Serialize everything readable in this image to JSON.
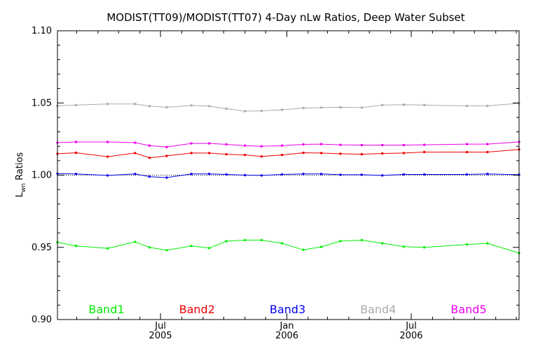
{
  "chart_data": {
    "type": "line",
    "title": "MODIST(TT09)/MODIST(TT07) 4-Day nLw Ratios, Deep Water Subset",
    "ylabel": {
      "main": "L",
      "subscript": "wn",
      "suffix": " Ratios"
    },
    "xlabel": "",
    "ylim": [
      0.9,
      1.1
    ],
    "xlim": [
      "2005-02-01",
      "2006-12-05"
    ],
    "y_ticks": [
      "0.90",
      "0.95",
      "1.00",
      "1.05",
      "1.10"
    ],
    "y_tick_values": [
      0.9,
      0.95,
      1.0,
      1.05,
      1.1
    ],
    "x_ticks": [
      {
        "date": "2005-07-01",
        "month": "Jul",
        "year": "2005"
      },
      {
        "date": "2006-01-01",
        "month": "Jan",
        "year": "2006"
      },
      {
        "date": "2006-07-01",
        "month": "Jul",
        "year": "2006"
      }
    ],
    "x_minor_tick_dates": [
      "2005-03-01",
      "2005-04-01",
      "2005-05-01",
      "2005-06-01",
      "2005-08-01",
      "2005-09-01",
      "2005-10-01",
      "2005-11-01",
      "2005-12-01",
      "2006-02-01",
      "2006-03-01",
      "2006-04-01",
      "2006-05-01",
      "2006-06-01",
      "2006-08-01",
      "2006-09-01",
      "2006-10-01",
      "2006-11-01",
      "2006-12-01"
    ],
    "reference_line": {
      "y": 1.0,
      "style": "dotted"
    },
    "legend_position": "bottom, inside plot",
    "grid": false,
    "series": [
      {
        "name": "Band1",
        "color": "#00ee00",
        "x": [
          "2005-02-01",
          "2005-02-28",
          "2005-04-15",
          "2005-05-25",
          "2005-06-15",
          "2005-07-10",
          "2005-08-15",
          "2005-09-10",
          "2005-10-05",
          "2005-11-01",
          "2005-11-25",
          "2005-12-25",
          "2006-01-25",
          "2006-02-20",
          "2006-03-20",
          "2006-04-20",
          "2006-05-20",
          "2006-06-20",
          "2006-07-20",
          "2006-09-20",
          "2006-10-20",
          "2006-12-05"
        ],
        "y": [
          0.9535,
          0.951,
          0.9493,
          0.9538,
          0.95,
          0.948,
          0.951,
          0.9495,
          0.9543,
          0.955,
          0.955,
          0.9528,
          0.9483,
          0.9503,
          0.9543,
          0.955,
          0.9528,
          0.9505,
          0.95,
          0.952,
          0.9528,
          0.946
        ]
      },
      {
        "name": "Band2",
        "color": "#ee0000",
        "x": [
          "2005-02-01",
          "2005-02-28",
          "2005-04-15",
          "2005-05-25",
          "2005-06-15",
          "2005-07-10",
          "2005-08-15",
          "2005-09-10",
          "2005-10-05",
          "2005-11-01",
          "2005-11-25",
          "2005-12-25",
          "2006-01-25",
          "2006-02-20",
          "2006-03-20",
          "2006-04-20",
          "2006-05-20",
          "2006-06-20",
          "2006-07-20",
          "2006-09-20",
          "2006-10-20",
          "2006-12-05"
        ],
        "y": [
          1.0148,
          1.0155,
          1.0128,
          1.0153,
          1.012,
          1.0133,
          1.0153,
          1.0153,
          1.0145,
          1.014,
          1.013,
          1.014,
          1.0155,
          1.0153,
          1.0148,
          1.0145,
          1.015,
          1.0153,
          1.016,
          1.016,
          1.016,
          1.0178
        ]
      },
      {
        "name": "Band3",
        "color": "#0000ee",
        "x": [
          "2005-02-01",
          "2005-02-28",
          "2005-04-15",
          "2005-05-25",
          "2005-06-15",
          "2005-07-10",
          "2005-08-15",
          "2005-09-10",
          "2005-10-05",
          "2005-11-01",
          "2005-11-25",
          "2005-12-25",
          "2006-01-25",
          "2006-02-20",
          "2006-03-20",
          "2006-04-20",
          "2006-05-20",
          "2006-06-20",
          "2006-07-20",
          "2006-09-20",
          "2006-10-20",
          "2006-12-05"
        ],
        "y": [
          1.001,
          1.0008,
          0.9998,
          1.0008,
          0.999,
          0.9983,
          1.0008,
          1.0008,
          1.0005,
          1.0,
          0.9998,
          1.0005,
          1.0008,
          1.0008,
          1.0003,
          1.0003,
          0.9998,
          1.0005,
          1.0005,
          1.0005,
          1.0008,
          1.0003
        ]
      },
      {
        "name": "Band4",
        "color": "#aaaaaa",
        "x": [
          "2005-02-01",
          "2005-02-28",
          "2005-04-15",
          "2005-05-25",
          "2005-06-15",
          "2005-07-10",
          "2005-08-15",
          "2005-09-10",
          "2005-10-05",
          "2005-11-01",
          "2005-11-25",
          "2005-12-25",
          "2006-01-25",
          "2006-02-20",
          "2006-03-20",
          "2006-04-20",
          "2006-05-20",
          "2006-06-20",
          "2006-07-20",
          "2006-09-20",
          "2006-10-20",
          "2006-12-05"
        ],
        "y": [
          1.048,
          1.0485,
          1.0493,
          1.0493,
          1.0478,
          1.047,
          1.0483,
          1.0478,
          1.046,
          1.0443,
          1.0445,
          1.0453,
          1.0465,
          1.0468,
          1.047,
          1.0468,
          1.0485,
          1.0488,
          1.0485,
          1.048,
          1.048,
          1.0498
        ]
      },
      {
        "name": "Band5",
        "color": "#ee00ee",
        "x": [
          "2005-02-01",
          "2005-02-28",
          "2005-04-15",
          "2005-05-25",
          "2005-06-15",
          "2005-07-10",
          "2005-08-15",
          "2005-09-10",
          "2005-10-05",
          "2005-11-01",
          "2005-11-25",
          "2005-12-25",
          "2006-01-25",
          "2006-02-20",
          "2006-03-20",
          "2006-04-20",
          "2006-05-20",
          "2006-06-20",
          "2006-07-20",
          "2006-09-20",
          "2006-10-20",
          "2006-12-05"
        ],
        "y": [
          1.0225,
          1.023,
          1.023,
          1.0225,
          1.0205,
          1.0195,
          1.022,
          1.022,
          1.0213,
          1.0205,
          1.02,
          1.0205,
          1.0213,
          1.0215,
          1.021,
          1.0208,
          1.0208,
          1.0208,
          1.021,
          1.0215,
          1.0215,
          1.023
        ]
      }
    ]
  }
}
